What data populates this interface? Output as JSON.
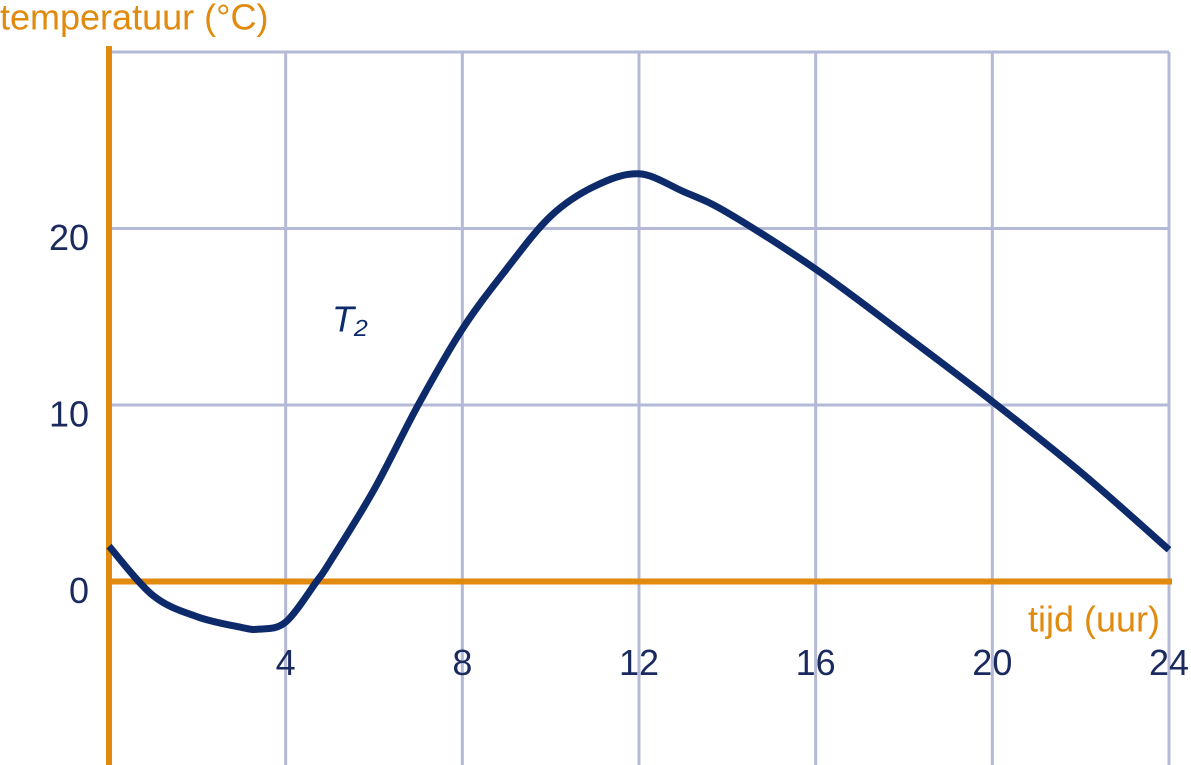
{
  "chart_data": {
    "type": "line",
    "y_label": "temperatuur (°C)",
    "x_label": "tijd (uur)",
    "x": [
      0,
      1,
      2,
      3,
      3.4,
      4,
      4.7,
      5,
      6,
      7,
      8,
      9,
      10,
      11,
      12,
      13,
      14,
      16,
      18,
      20,
      22,
      24
    ],
    "series": [
      {
        "name": "T₂",
        "color": "#0d2a6b",
        "values": [
          2.0,
          -0.8,
          -2.0,
          -2.6,
          -2.7,
          -2.3,
          0,
          1.1,
          5.2,
          10.0,
          14.3,
          17.7,
          20.7,
          22.4,
          23.1,
          22.1,
          20.9,
          17.7,
          14.0,
          10.2,
          6.2,
          1.8
        ]
      }
    ],
    "xlim": [
      0,
      24
    ],
    "ylim": [
      -10,
      30
    ],
    "xticks": [
      4,
      8,
      12,
      16,
      20,
      24
    ],
    "yticks": [
      0,
      10,
      20
    ],
    "grid": true,
    "axis_color": "#e08a0e",
    "grid_color": "#b3b9d6",
    "tick_color": "#1a2a5e"
  }
}
